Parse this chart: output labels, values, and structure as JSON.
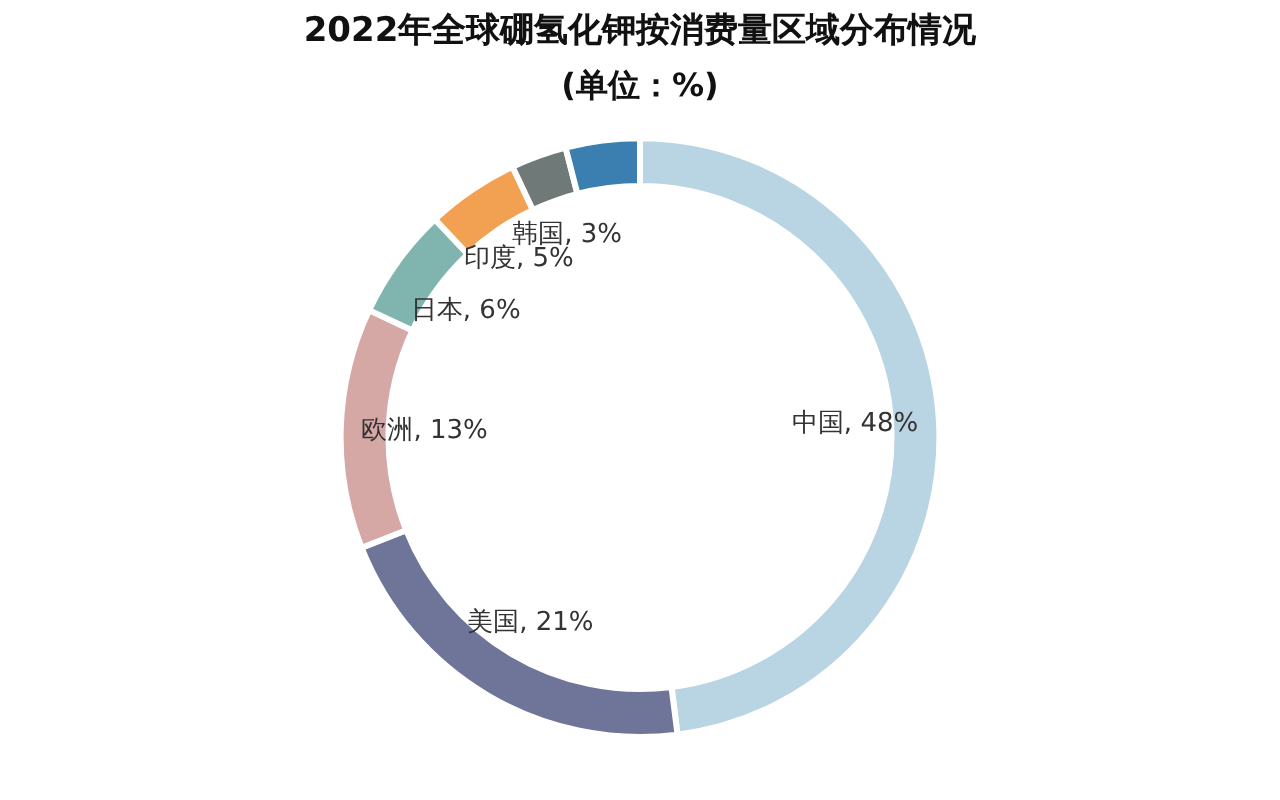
{
  "chart_data": {
    "type": "donut",
    "title": "2022年全球硼氢化钾按消费量区域分布情况",
    "subtitle": "(单位：%)",
    "categories": [
      "中国",
      "美国",
      "欧洲",
      "日本",
      "印度",
      "韩国",
      null
    ],
    "values": [
      48,
      21,
      13,
      6,
      5,
      3,
      4
    ],
    "colors": [
      "#b9d4e2",
      "#6e7599",
      "#d5a7a5",
      "#7fb5ae",
      "#f2a052",
      "#6f7a78",
      "#3a7fb0"
    ],
    "value_labels": [
      ", 48%",
      ", 21%",
      ", 13%",
      ", 6%",
      ", 5%",
      ", 3%",
      null
    ],
    "legend": false
  }
}
